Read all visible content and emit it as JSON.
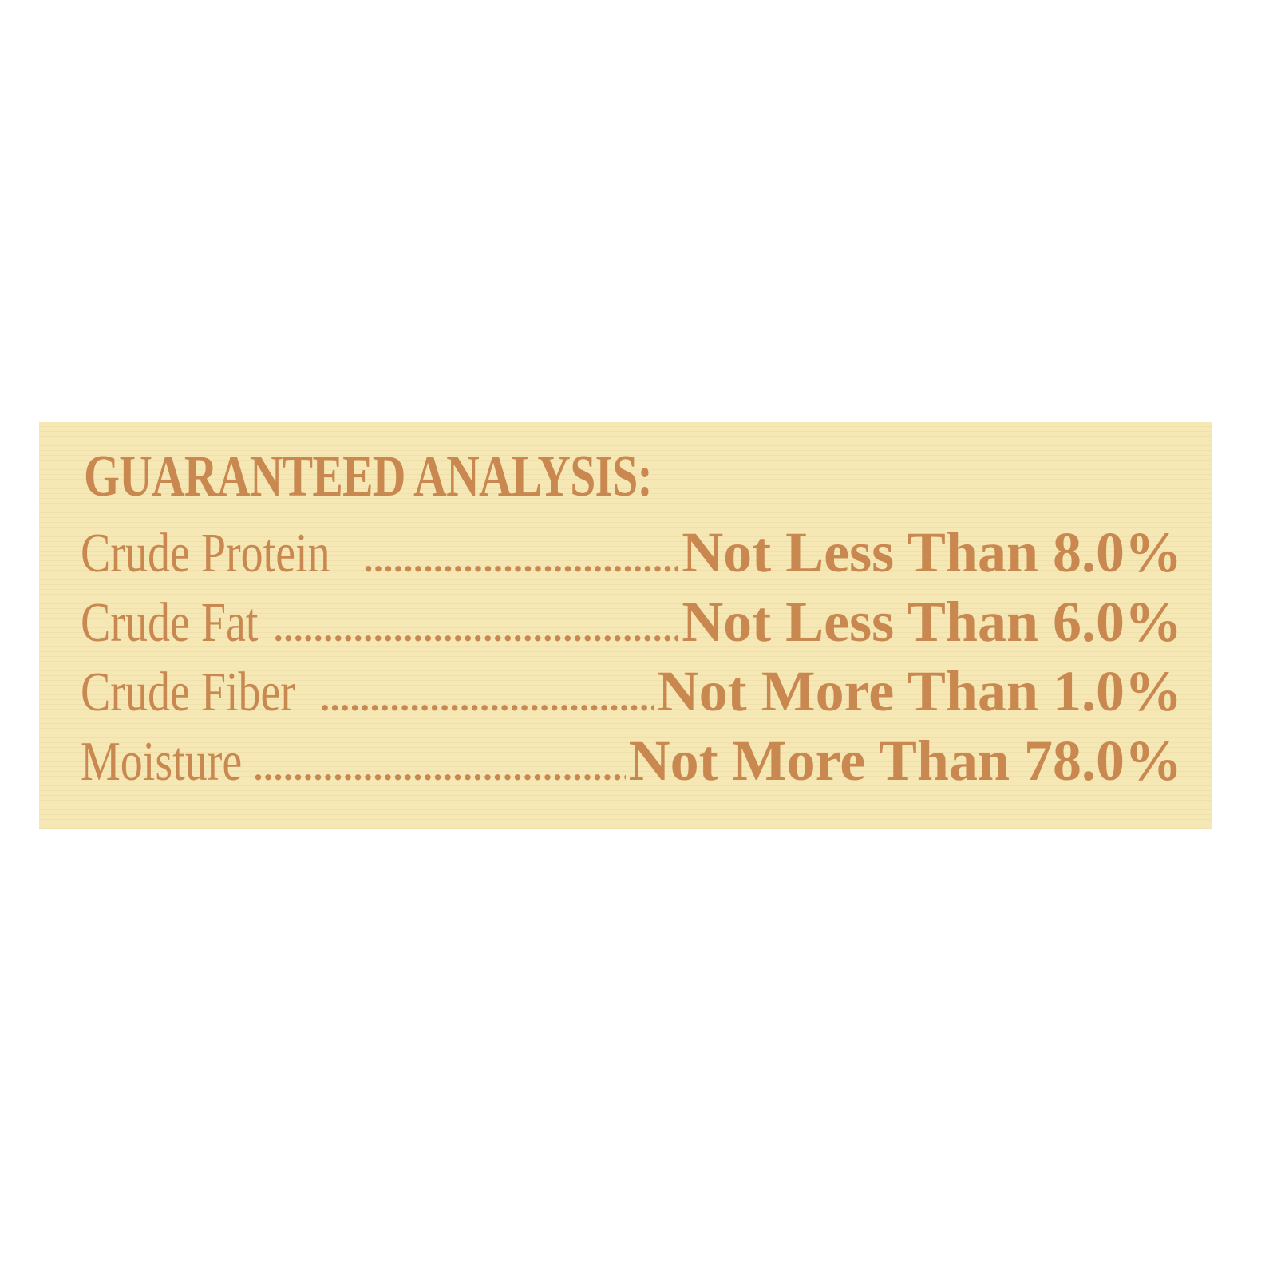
{
  "label": {
    "title": "GUARANTEED ANALYSIS:",
    "rows": [
      {
        "name": "Crude Protein",
        "value": "Not Less Than 8.0%"
      },
      {
        "name": "Crude Fat",
        "value": "Not Less Than 6.0%"
      },
      {
        "name": "Crude Fiber",
        "value": "Not More Than 1.0%"
      },
      {
        "name": "Moisture",
        "value": "Not More Than 78.0%"
      }
    ]
  },
  "colors": {
    "background": "#f6e8b4",
    "text": "#c98850"
  }
}
